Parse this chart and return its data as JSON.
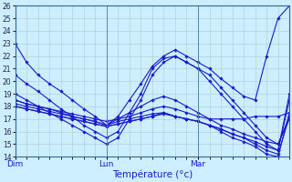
{
  "xlabel": "Température (°c)",
  "background_color": "#cceeff",
  "grid_color": "#aacccc",
  "line_color": "#1a1acc",
  "ylim": [
    14,
    26
  ],
  "xlim": [
    0,
    72
  ],
  "yticks": [
    14,
    15,
    16,
    17,
    18,
    19,
    20,
    21,
    22,
    23,
    24,
    25,
    26
  ],
  "day_positions": [
    0,
    24,
    48
  ],
  "day_labels": [
    "Dim",
    "Lun",
    "Mar"
  ],
  "series": [
    {
      "x": [
        0,
        3,
        6,
        9,
        12,
        15,
        18,
        21,
        24,
        27,
        30,
        33,
        36,
        39,
        42,
        45,
        48,
        51,
        54,
        57,
        60,
        63,
        66,
        69,
        72
      ],
      "y": [
        23.0,
        21.5,
        20.5,
        19.8,
        19.2,
        18.5,
        17.8,
        17.2,
        16.5,
        17.2,
        18.5,
        19.8,
        21.2,
        22.0,
        22.5,
        22.0,
        21.5,
        21.0,
        20.2,
        19.5,
        18.8,
        18.5,
        22.0,
        25.0,
        26.0
      ]
    },
    {
      "x": [
        0,
        3,
        6,
        9,
        12,
        15,
        18,
        21,
        24,
        27,
        30,
        33,
        36,
        39,
        42,
        45,
        48,
        51,
        54,
        57,
        60,
        63,
        66,
        69,
        72
      ],
      "y": [
        20.5,
        19.8,
        19.2,
        18.5,
        17.8,
        17.2,
        16.5,
        16.0,
        15.5,
        16.0,
        17.5,
        19.0,
        21.0,
        21.8,
        22.0,
        21.5,
        21.0,
        20.5,
        19.5,
        18.5,
        17.5,
        16.5,
        15.5,
        15.0,
        17.2
      ]
    },
    {
      "x": [
        0,
        3,
        6,
        9,
        12,
        15,
        18,
        21,
        24,
        27,
        30,
        33,
        36,
        39,
        42,
        45,
        48,
        51,
        54,
        57,
        60,
        63,
        66,
        69,
        72
      ],
      "y": [
        19.0,
        18.5,
        18.0,
        17.5,
        17.0,
        16.5,
        16.0,
        15.5,
        15.0,
        15.5,
        17.0,
        18.5,
        20.5,
        21.5,
        22.0,
        21.5,
        21.0,
        20.0,
        19.0,
        18.0,
        17.0,
        16.0,
        15.0,
        14.5,
        18.5
      ]
    },
    {
      "x": [
        0,
        3,
        6,
        9,
        12,
        15,
        18,
        21,
        24,
        27,
        30,
        33,
        36,
        39,
        42,
        45,
        48,
        51,
        54,
        57,
        60,
        63,
        66,
        69,
        72
      ],
      "y": [
        18.5,
        18.2,
        18.0,
        17.8,
        17.5,
        17.2,
        17.0,
        16.8,
        16.5,
        17.0,
        17.5,
        18.0,
        18.5,
        18.8,
        18.5,
        18.0,
        17.5,
        17.0,
        16.5,
        16.2,
        15.8,
        15.5,
        15.2,
        15.0,
        17.0
      ]
    },
    {
      "x": [
        0,
        3,
        6,
        9,
        12,
        15,
        18,
        21,
        24,
        27,
        30,
        33,
        36,
        39,
        42,
        45,
        48,
        51,
        54,
        57,
        60,
        63,
        66,
        69,
        72
      ],
      "y": [
        18.2,
        18.0,
        17.8,
        17.6,
        17.4,
        17.2,
        17.0,
        16.8,
        16.5,
        16.8,
        17.0,
        17.2,
        17.4,
        17.5,
        17.2,
        17.0,
        16.8,
        16.5,
        16.2,
        15.8,
        15.5,
        15.2,
        14.8,
        14.5,
        19.0
      ]
    },
    {
      "x": [
        0,
        3,
        6,
        9,
        12,
        15,
        18,
        21,
        24,
        27,
        30,
        33,
        36,
        39,
        42,
        45,
        48,
        51,
        54,
        57,
        60,
        63,
        66,
        69,
        72
      ],
      "y": [
        18.0,
        17.8,
        17.6,
        17.4,
        17.2,
        17.0,
        16.8,
        16.6,
        16.4,
        16.6,
        16.8,
        17.0,
        17.2,
        17.4,
        17.2,
        17.0,
        16.8,
        16.5,
        16.2,
        15.8,
        15.5,
        15.0,
        14.5,
        14.2,
        17.2
      ]
    },
    {
      "x": [
        0,
        3,
        6,
        9,
        12,
        15,
        18,
        21,
        24,
        27,
        30,
        33,
        36,
        39,
        42,
        45,
        48,
        51,
        54,
        57,
        60,
        63,
        66,
        69,
        72
      ],
      "y": [
        18.5,
        18.2,
        18.0,
        17.8,
        17.6,
        17.4,
        17.2,
        17.0,
        16.8,
        17.0,
        17.2,
        17.5,
        17.8,
        18.0,
        17.8,
        17.5,
        17.2,
        17.0,
        17.0,
        17.0,
        17.0,
        17.2,
        17.2,
        17.2,
        17.5
      ]
    },
    {
      "x": [
        0,
        3,
        6,
        9,
        12,
        15,
        18,
        21,
        24,
        27,
        30,
        33,
        36,
        39,
        42,
        45,
        48,
        51,
        54,
        57,
        60,
        63,
        66,
        69,
        72
      ],
      "y": [
        18.0,
        17.8,
        17.6,
        17.4,
        17.2,
        17.0,
        16.8,
        16.6,
        16.4,
        16.6,
        16.8,
        17.0,
        17.2,
        17.5,
        17.2,
        17.0,
        16.8,
        16.5,
        16.0,
        15.5,
        15.2,
        14.8,
        14.2,
        14.0,
        17.5
      ]
    }
  ]
}
